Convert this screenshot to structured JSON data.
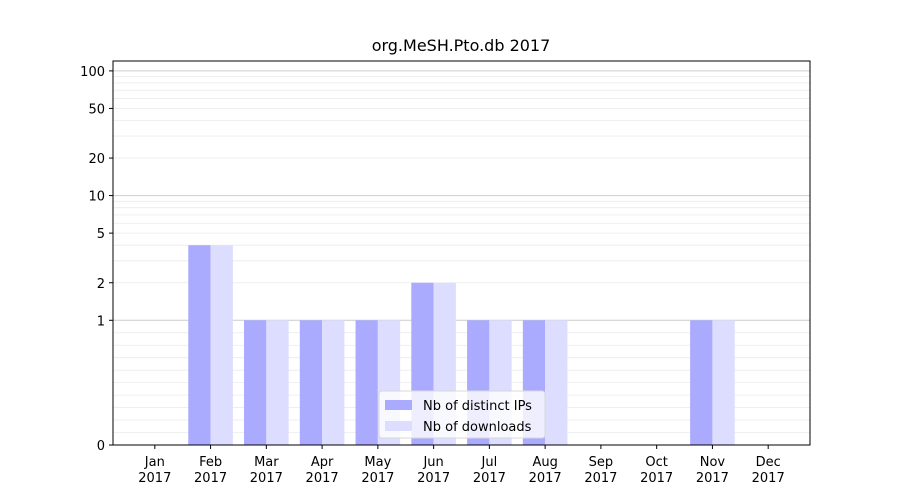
{
  "chart_data": {
    "type": "bar",
    "title": "org.MeSH.Pto.db 2017",
    "xlabel": "",
    "ylabel": "",
    "y_scale": "symlog",
    "ylim": [
      0,
      120
    ],
    "y_ticks": [
      0,
      1,
      2,
      5,
      10,
      20,
      50,
      100
    ],
    "grid": true,
    "legend_position": "lower center",
    "categories": [
      [
        "Jan",
        "2017"
      ],
      [
        "Feb",
        "2017"
      ],
      [
        "Mar",
        "2017"
      ],
      [
        "Apr",
        "2017"
      ],
      [
        "May",
        "2017"
      ],
      [
        "Jun",
        "2017"
      ],
      [
        "Jul",
        "2017"
      ],
      [
        "Aug",
        "2017"
      ],
      [
        "Sep",
        "2017"
      ],
      [
        "Oct",
        "2017"
      ],
      [
        "Nov",
        "2017"
      ],
      [
        "Dec",
        "2017"
      ]
    ],
    "series": [
      {
        "name": "Nb of distinct IPs",
        "color": "#aaaaff",
        "values": [
          0,
          4,
          1,
          1,
          1,
          2,
          1,
          1,
          0,
          0,
          1,
          0
        ]
      },
      {
        "name": "Nb of downloads",
        "color": "#ddddff",
        "values": [
          0,
          4,
          1,
          1,
          1,
          2,
          1,
          1,
          0,
          0,
          1,
          0
        ]
      }
    ]
  }
}
